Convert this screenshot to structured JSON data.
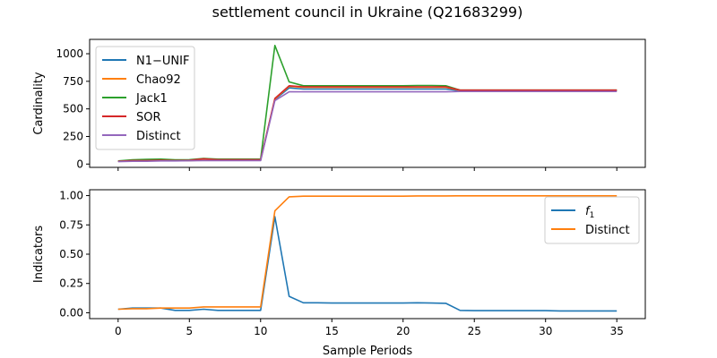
{
  "title": "settlement council  in Ukraine (Q21683299)",
  "chart_data": [
    {
      "type": "line",
      "ylabel": "Cardinality",
      "xlabel": "",
      "xlim": [
        -2,
        37
      ],
      "ylim": [
        -30,
        1130
      ],
      "xticks": [
        0,
        5,
        10,
        15,
        20,
        25,
        30,
        35
      ],
      "xtick_labels_shown": false,
      "yticks": [
        0,
        250,
        500,
        750,
        1000
      ],
      "ytick_labels": [
        "0",
        "250",
        "500",
        "750",
        "1000"
      ],
      "legend": "upper-left",
      "x": [
        0,
        1,
        2,
        3,
        4,
        5,
        6,
        7,
        8,
        9,
        10,
        11,
        12,
        13,
        14,
        15,
        16,
        17,
        18,
        19,
        20,
        21,
        22,
        23,
        24,
        25,
        26,
        27,
        28,
        29,
        30,
        31,
        32,
        33,
        34,
        35
      ],
      "series": [
        {
          "name": "N1−UNIF",
          "color": "#1f77b4",
          "values": [
            25,
            30,
            30,
            32,
            30,
            32,
            35,
            35,
            35,
            35,
            35,
            585,
            690,
            680,
            680,
            680,
            680,
            680,
            680,
            680,
            680,
            680,
            680,
            680,
            665,
            665,
            665,
            665,
            665,
            665,
            665,
            665,
            665,
            665,
            665,
            665
          ]
        },
        {
          "name": "Chao92",
          "color": "#ff7f0e",
          "values": [
            25,
            30,
            30,
            32,
            30,
            32,
            35,
            35,
            35,
            35,
            35,
            590,
            705,
            695,
            695,
            695,
            695,
            695,
            695,
            695,
            695,
            695,
            695,
            695,
            668,
            668,
            668,
            668,
            668,
            668,
            668,
            668,
            668,
            668,
            668,
            668
          ]
        },
        {
          "name": "Jack1",
          "color": "#2ca02c",
          "values": [
            28,
            38,
            42,
            45,
            38,
            40,
            50,
            45,
            45,
            45,
            45,
            1075,
            745,
            710,
            710,
            710,
            710,
            710,
            710,
            710,
            710,
            712,
            712,
            710,
            670,
            670,
            670,
            670,
            670,
            670,
            670,
            670,
            670,
            670,
            670,
            670
          ]
        },
        {
          "name": "SOR",
          "color": "#d62728",
          "values": [
            25,
            32,
            32,
            35,
            32,
            35,
            48,
            40,
            40,
            40,
            40,
            595,
            710,
            700,
            700,
            700,
            700,
            700,
            700,
            700,
            700,
            700,
            700,
            700,
            670,
            670,
            670,
            670,
            670,
            670,
            670,
            670,
            670,
            670,
            670,
            670
          ]
        },
        {
          "name": "Distinct",
          "color": "#9467bd",
          "values": [
            22,
            25,
            25,
            28,
            28,
            30,
            32,
            32,
            32,
            32,
            32,
            575,
            655,
            655,
            655,
            655,
            655,
            655,
            655,
            655,
            655,
            655,
            655,
            655,
            658,
            658,
            658,
            658,
            658,
            658,
            658,
            658,
            658,
            658,
            658,
            658
          ]
        }
      ]
    },
    {
      "type": "line",
      "ylabel": "Indicators",
      "xlabel": "Sample Periods",
      "xlim": [
        -2,
        37
      ],
      "ylim": [
        -0.05,
        1.05
      ],
      "xticks": [
        0,
        5,
        10,
        15,
        20,
        25,
        30,
        35
      ],
      "xtick_labels": [
        "0",
        "5",
        "10",
        "15",
        "20",
        "25",
        "30",
        "35"
      ],
      "yticks": [
        0.0,
        0.25,
        0.5,
        0.75,
        1.0
      ],
      "ytick_labels": [
        "0.00",
        "0.25",
        "0.50",
        "0.75",
        "1.00"
      ],
      "legend": "upper-right",
      "x": [
        0,
        1,
        2,
        3,
        4,
        5,
        6,
        7,
        8,
        9,
        10,
        11,
        12,
        13,
        14,
        15,
        16,
        17,
        18,
        19,
        20,
        21,
        22,
        23,
        24,
        25,
        26,
        27,
        28,
        29,
        30,
        31,
        32,
        33,
        34,
        35
      ],
      "series": [
        {
          "name": "f1",
          "name_main": "f",
          "name_sub": "1",
          "color": "#1f77b4",
          "values": [
            0.03,
            0.04,
            0.04,
            0.04,
            0.02,
            0.02,
            0.03,
            0.02,
            0.02,
            0.02,
            0.02,
            0.82,
            0.14,
            0.085,
            0.085,
            0.083,
            0.083,
            0.083,
            0.083,
            0.083,
            0.083,
            0.085,
            0.083,
            0.081,
            0.02,
            0.018,
            0.018,
            0.018,
            0.018,
            0.018,
            0.018,
            0.016,
            0.016,
            0.016,
            0.016,
            0.016
          ]
        },
        {
          "name": "Distinct",
          "color": "#ff7f0e",
          "values": [
            0.03,
            0.035,
            0.035,
            0.04,
            0.04,
            0.04,
            0.05,
            0.05,
            0.05,
            0.05,
            0.05,
            0.87,
            0.99,
            0.995,
            0.995,
            0.995,
            0.995,
            0.995,
            0.995,
            0.995,
            0.995,
            0.997,
            0.997,
            0.997,
            0.998,
            0.998,
            0.998,
            0.998,
            0.998,
            0.998,
            0.998,
            0.998,
            0.998,
            0.998,
            0.998,
            0.998
          ]
        }
      ]
    }
  ]
}
